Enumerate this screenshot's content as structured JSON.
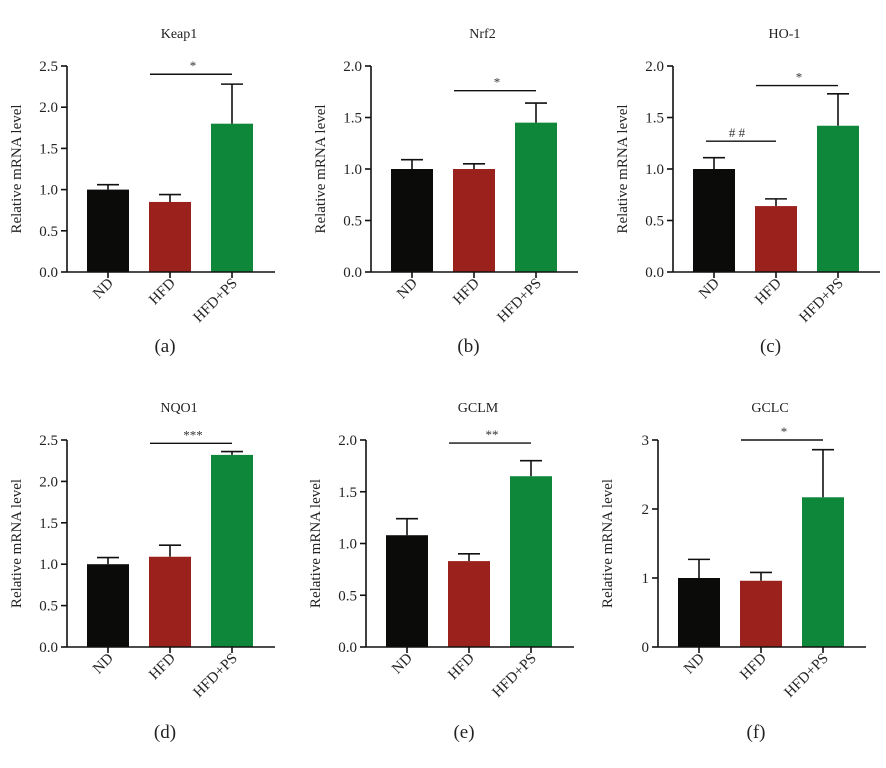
{
  "chart_data": [
    {
      "type": "bar",
      "panel_label": "(a)",
      "title": "Keap1",
      "ylabel": "Relative mRNA level",
      "xlabel": "",
      "categories": [
        "ND",
        "HFD",
        "HFD+PS"
      ],
      "values": [
        1.0,
        0.85,
        1.8
      ],
      "error_upper": [
        1.06,
        0.94,
        2.28
      ],
      "ylim": [
        0,
        2.5
      ],
      "yticks": [
        0.0,
        0.5,
        1.0,
        1.5,
        2.0,
        2.5
      ],
      "ytick_labels": [
        "0.0",
        "0.5",
        "1.0",
        "1.5",
        "2.0",
        "2.5"
      ],
      "significance": [
        {
          "from": 1,
          "to": 2,
          "label": "*",
          "y": 2.4
        }
      ],
      "colors": [
        "#0b0b09",
        "#9b221c",
        "#0f873a"
      ]
    },
    {
      "type": "bar",
      "panel_label": "(b)",
      "title": "Nrf2",
      "ylabel": "Relative mRNA level",
      "xlabel": "",
      "categories": [
        "ND",
        "HFD",
        "HFD+PS"
      ],
      "values": [
        1.0,
        1.0,
        1.45
      ],
      "error_upper": [
        1.09,
        1.05,
        1.64
      ],
      "ylim": [
        0,
        2.0
      ],
      "yticks": [
        0.0,
        0.5,
        1.0,
        1.5,
        2.0
      ],
      "ytick_labels": [
        "0.0",
        "0.5",
        "1.0",
        "1.5",
        "2.0"
      ],
      "significance": [
        {
          "from": 1,
          "to": 2,
          "label": "*",
          "y": 1.76
        }
      ],
      "colors": [
        "#0b0b09",
        "#9b221c",
        "#0f873a"
      ]
    },
    {
      "type": "bar",
      "panel_label": "(c)",
      "title": "HO-1",
      "ylabel": "Relative mRNA level",
      "xlabel": "",
      "categories": [
        "ND",
        "HFD",
        "HFD+PS"
      ],
      "values": [
        1.0,
        0.64,
        1.42
      ],
      "error_upper": [
        1.11,
        0.71,
        1.73
      ],
      "ylim": [
        0,
        2.0
      ],
      "yticks": [
        0.0,
        0.5,
        1.0,
        1.5,
        2.0
      ],
      "ytick_labels": [
        "0.0",
        "0.5",
        "1.0",
        "1.5",
        "2.0"
      ],
      "significance": [
        {
          "from": 0,
          "to": 1,
          "label": "# #",
          "y": 1.27
        },
        {
          "from": 1,
          "to": 2,
          "label": "*",
          "y": 1.81
        }
      ],
      "colors": [
        "#0b0b09",
        "#9b221c",
        "#0f873a"
      ]
    },
    {
      "type": "bar",
      "panel_label": "(d)",
      "title": "NQO1",
      "ylabel": "Relative mRNA level",
      "xlabel": "",
      "categories": [
        "ND",
        "HFD",
        "HFD+PS"
      ],
      "values": [
        1.0,
        1.09,
        2.32
      ],
      "error_upper": [
        1.08,
        1.23,
        2.36
      ],
      "ylim": [
        0,
        2.5
      ],
      "yticks": [
        0.0,
        0.5,
        1.0,
        1.5,
        2.0,
        2.5
      ],
      "ytick_labels": [
        "0.0",
        "0.5",
        "1.0",
        "1.5",
        "2.0",
        "2.5"
      ],
      "significance": [
        {
          "from": 1,
          "to": 2,
          "label": "***",
          "y": 2.46
        }
      ],
      "colors": [
        "#0b0b09",
        "#9b221c",
        "#0f873a"
      ]
    },
    {
      "type": "bar",
      "panel_label": "(e)",
      "title": "GCLM",
      "ylabel": "Relative mRNA level",
      "xlabel": "",
      "categories": [
        "ND",
        "HFD",
        "HFD+PS"
      ],
      "values": [
        1.08,
        0.83,
        1.65
      ],
      "error_upper": [
        1.24,
        0.9,
        1.8
      ],
      "ylim": [
        0,
        2.0
      ],
      "yticks": [
        0.0,
        0.5,
        1.0,
        1.5,
        2.0
      ],
      "ytick_labels": [
        "0.0",
        "0.5",
        "1.0",
        "1.5",
        "2.0"
      ],
      "significance": [
        {
          "from": 1,
          "to": 2,
          "label": "**",
          "y": 1.97
        }
      ],
      "colors": [
        "#0b0b09",
        "#9b221c",
        "#0f873a"
      ]
    },
    {
      "type": "bar",
      "panel_label": "(f)",
      "title": "GCLC",
      "ylabel": "Relative mRNA level",
      "xlabel": "",
      "categories": [
        "ND",
        "HFD",
        "HFD+PS"
      ],
      "values": [
        1.0,
        0.96,
        2.17
      ],
      "error_upper": [
        1.27,
        1.08,
        2.86
      ],
      "ylim": [
        0,
        3
      ],
      "yticks": [
        0,
        1,
        2,
        3
      ],
      "ytick_labels": [
        "0",
        "1",
        "2",
        "3"
      ],
      "significance": [
        {
          "from": 1,
          "to": 2,
          "label": "*",
          "y": 3.0
        }
      ],
      "colors": [
        "#0b0b09",
        "#9b221c",
        "#0f873a"
      ]
    }
  ]
}
